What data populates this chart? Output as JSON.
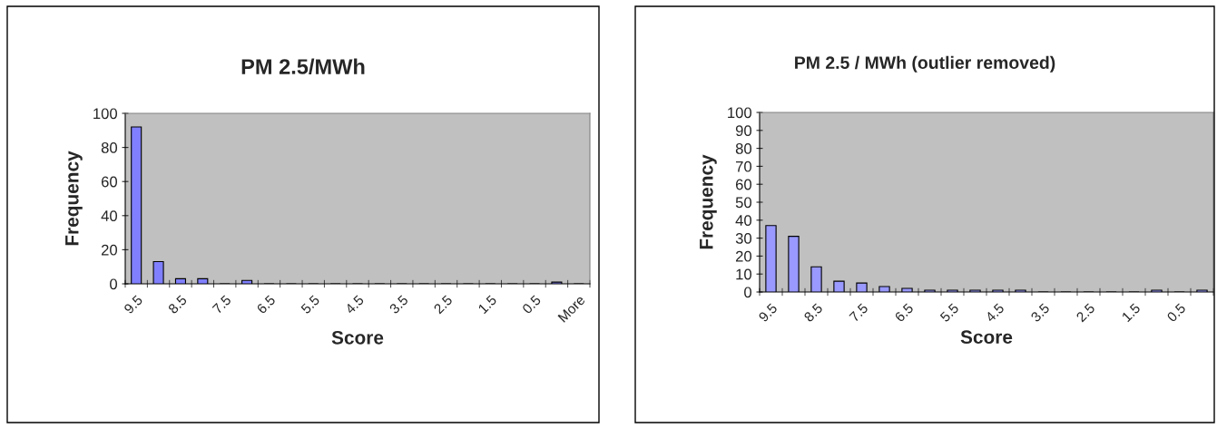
{
  "chart_data": [
    {
      "type": "bar",
      "title": "PM 2.5/MWh",
      "xlabel": "Score",
      "ylabel": "Frequency",
      "categories": [
        "9.5",
        null,
        "8.5",
        null,
        "7.5",
        null,
        "6.5",
        null,
        "5.5",
        null,
        "4.5",
        null,
        "3.5",
        null,
        "2.5",
        null,
        "1.5",
        null,
        "0.5",
        null,
        "More"
      ],
      "values": [
        92,
        13,
        3,
        3,
        0,
        2,
        0,
        0,
        0,
        0,
        0,
        0,
        0,
        0,
        0,
        0,
        0,
        0,
        0,
        1,
        0
      ],
      "color": "#8080ff",
      "ylim": [
        0,
        100
      ],
      "yticks": [
        0,
        20,
        40,
        60,
        80,
        100
      ],
      "grid": false,
      "legend": false
    },
    {
      "type": "bar",
      "title": "PM 2.5 / MWh (outlier removed)",
      "xlabel": "Score",
      "ylabel": "Frequency",
      "categories": [
        "9.5",
        null,
        "8.5",
        null,
        "7.5",
        null,
        "6.5",
        null,
        "5.5",
        null,
        "4.5",
        null,
        "3.5",
        null,
        "2.5",
        null,
        "1.5",
        null,
        "0.5",
        null
      ],
      "values": [
        37,
        31,
        14,
        6,
        5,
        3,
        2,
        1,
        1,
        1,
        1,
        1,
        0,
        0,
        0,
        0,
        0,
        1,
        0,
        1
      ],
      "color": "#9999ff",
      "ylim": [
        0,
        100
      ],
      "yticks": [
        0,
        10,
        20,
        30,
        40,
        50,
        60,
        70,
        80,
        90,
        100
      ],
      "grid": false,
      "legend": false
    }
  ]
}
